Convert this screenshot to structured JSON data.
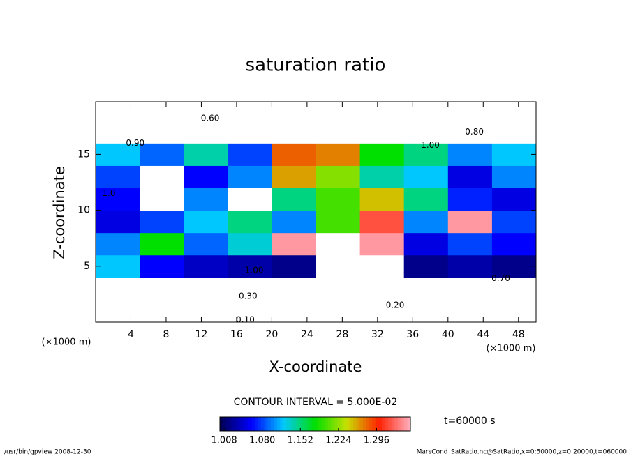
{
  "chart_data": {
    "type": "heatmap",
    "title": "saturation ratio",
    "xlabel": "X-coordinate",
    "ylabel": "Z-coordinate",
    "xunit": "(×1000 m)",
    "yunit": "(×1000 m)",
    "xlim": [
      0,
      50
    ],
    "ylim": [
      0,
      19.7
    ],
    "xticks": [
      4,
      8,
      12,
      16,
      20,
      24,
      28,
      32,
      36,
      40,
      44,
      48
    ],
    "yticks": [
      5,
      10,
      15
    ],
    "x_bins": [
      0,
      5,
      10,
      15,
      20,
      25,
      30,
      35,
      40,
      45,
      50
    ],
    "z_bins": [
      0,
      2,
      4,
      6,
      8,
      10,
      12,
      14,
      16,
      18,
      20
    ],
    "values": [
      [
        0.15,
        0.15,
        0.15,
        0.15,
        0.15,
        0.15,
        0.15,
        0.15,
        0.15,
        0.15
      ],
      [
        0.45,
        0.45,
        0.45,
        0.45,
        0.45,
        0.45,
        0.45,
        0.45,
        0.45,
        0.45
      ],
      [
        1.12,
        1.06,
        1.04,
        1.03,
        1.02,
        0.9,
        0.9,
        1.02,
        1.03,
        1.02
      ],
      [
        1.1,
        1.18,
        1.09,
        1.13,
        1.35,
        0.95,
        1.35,
        1.05,
        1.08,
        1.06
      ],
      [
        1.05,
        1.08,
        1.12,
        1.15,
        1.1,
        1.2,
        1.32,
        1.1,
        1.35,
        1.08
      ],
      [
        1.06,
        0.95,
        1.1,
        0.95,
        1.15,
        1.2,
        1.25,
        1.15,
        1.07,
        1.05
      ],
      [
        1.08,
        0.95,
        1.06,
        1.1,
        1.26,
        1.22,
        1.14,
        1.12,
        1.05,
        1.1
      ],
      [
        1.12,
        1.09,
        1.14,
        1.08,
        1.28,
        1.27,
        1.18,
        1.15,
        1.1,
        1.12
      ],
      [
        0.85,
        0.9,
        0.95,
        0.8,
        0.85,
        0.9,
        0.85,
        0.95,
        0.9,
        0.85
      ],
      [
        0.6,
        0.62,
        0.65,
        0.6,
        0.6,
        0.62,
        0.65,
        0.6,
        0.62,
        0.6
      ]
    ],
    "colors": [
      "#000050",
      "#0000ff",
      "#00c8ff",
      "#00e000",
      "#c8e000",
      "#ff2000",
      "#ffb0c0"
    ],
    "above_color": "#8a1aa8",
    "colorbar_lim": [
      1.0,
      1.36
    ],
    "colorbar_ticks": [
      1.008,
      {
        "value": 1.08,
        "label": "1.080"
      },
      1.152,
      1.224,
      1.296
    ],
    "contour_interval": "CONTOUR INTERVAL = 5.000E-02",
    "contour_labels": [
      {
        "label": "0.10",
        "x": 17,
        "z": 0.2
      },
      {
        "label": "0.20",
        "x": 34,
        "z": 1.5
      },
      {
        "label": "0.30",
        "x": 17.3,
        "z": 2.3
      },
      {
        "label": "1.00",
        "x": 18,
        "z": 4.6
      },
      {
        "label": "0.70",
        "x": 46,
        "z": 3.9
      },
      {
        "label": "0.80",
        "x": 43,
        "z": 17
      },
      {
        "label": "0.60",
        "x": 13,
        "z": 18.2
      },
      {
        "label": "0.90",
        "x": 4.5,
        "z": 16
      },
      {
        "label": "1.00",
        "x": 38,
        "z": 15.8
      },
      {
        "label": "1.0",
        "x": 1.5,
        "z": 11.5
      }
    ],
    "time_label": "t=60000 s",
    "footer_left": "/usr/bin/gpview   2008-12-30",
    "footer_right": "MarsCond_SatRatio.nc@SatRatio,x=0:50000,z=0:20000,t=060000"
  }
}
